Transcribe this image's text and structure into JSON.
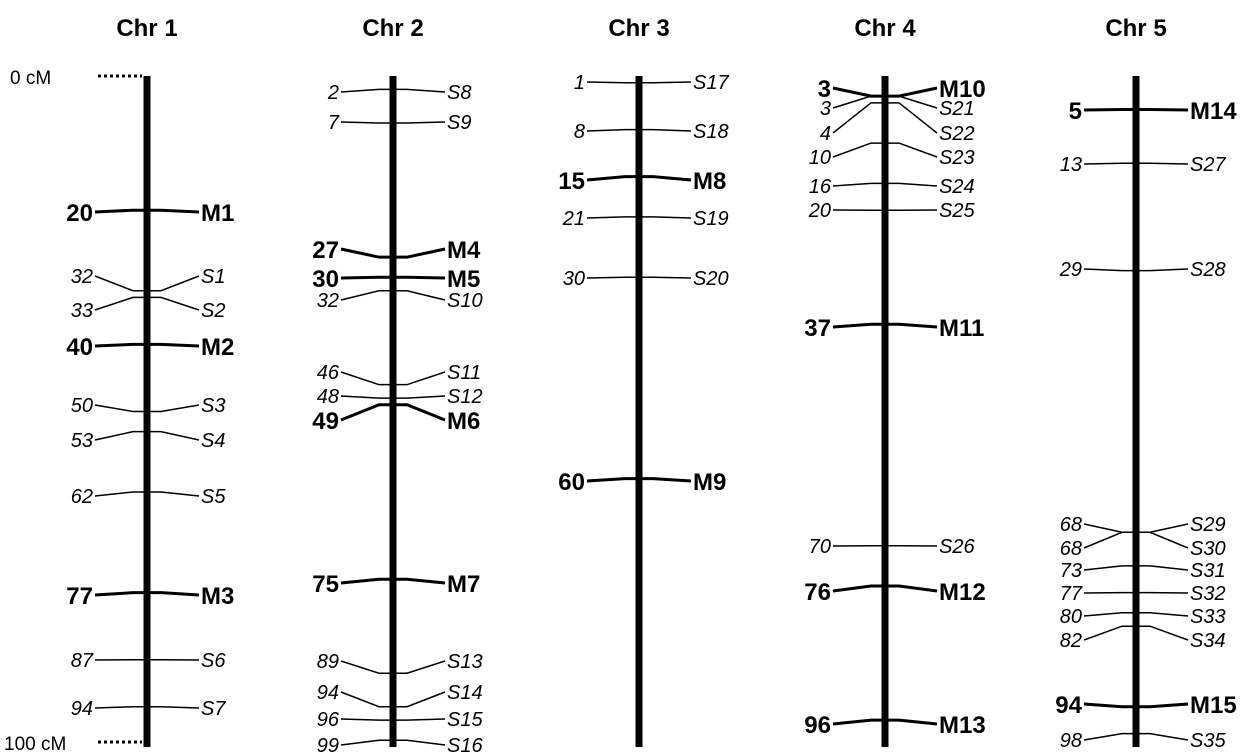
{
  "scale": {
    "top_label": "0 cM",
    "bottom_label": "100 cM"
  },
  "chromosomes": [
    {
      "title": "Chr 1",
      "markers": [
        {
          "pos": "20",
          "name": "M1",
          "major": true
        },
        {
          "pos": "32",
          "name": "S1",
          "major": false
        },
        {
          "pos": "33",
          "name": "S2",
          "major": false
        },
        {
          "pos": "40",
          "name": "M2",
          "major": true
        },
        {
          "pos": "50",
          "name": "S3",
          "major": false
        },
        {
          "pos": "53",
          "name": "S4",
          "major": false
        },
        {
          "pos": "62",
          "name": "S5",
          "major": false
        },
        {
          "pos": "77",
          "name": "M3",
          "major": true
        },
        {
          "pos": "87",
          "name": "S6",
          "major": false
        },
        {
          "pos": "94",
          "name": "S7",
          "major": false
        }
      ]
    },
    {
      "title": "Chr 2",
      "markers": [
        {
          "pos": "2",
          "name": "S8",
          "major": false
        },
        {
          "pos": "7",
          "name": "S9",
          "major": false
        },
        {
          "pos": "27",
          "name": "M4",
          "major": true
        },
        {
          "pos": "30",
          "name": "M5",
          "major": true
        },
        {
          "pos": "32",
          "name": "S10",
          "major": false
        },
        {
          "pos": "46",
          "name": "S11",
          "major": false
        },
        {
          "pos": "48",
          "name": "S12",
          "major": false
        },
        {
          "pos": "49",
          "name": "M6",
          "major": true
        },
        {
          "pos": "75",
          "name": "M7",
          "major": true
        },
        {
          "pos": "89",
          "name": "S13",
          "major": false
        },
        {
          "pos": "94",
          "name": "S14",
          "major": false
        },
        {
          "pos": "96",
          "name": "S15",
          "major": false
        },
        {
          "pos": "99",
          "name": "S16",
          "major": false
        }
      ]
    },
    {
      "title": "Chr 3",
      "markers": [
        {
          "pos": "1",
          "name": "S17",
          "major": false
        },
        {
          "pos": "8",
          "name": "S18",
          "major": false
        },
        {
          "pos": "15",
          "name": "M8",
          "major": true
        },
        {
          "pos": "21",
          "name": "S19",
          "major": false
        },
        {
          "pos": "30",
          "name": "S20",
          "major": false
        },
        {
          "pos": "60",
          "name": "M9",
          "major": true
        }
      ]
    },
    {
      "title": "Chr 4",
      "markers": [
        {
          "pos": "3",
          "name": "M10",
          "major": true
        },
        {
          "pos": "3",
          "name": "S21",
          "major": false
        },
        {
          "pos": "4",
          "name": "S22",
          "major": false
        },
        {
          "pos": "10",
          "name": "S23",
          "major": false
        },
        {
          "pos": "16",
          "name": "S24",
          "major": false
        },
        {
          "pos": "20",
          "name": "S25",
          "major": false
        },
        {
          "pos": "37",
          "name": "M11",
          "major": true
        },
        {
          "pos": "70",
          "name": "S26",
          "major": false
        },
        {
          "pos": "76",
          "name": "M12",
          "major": true
        },
        {
          "pos": "96",
          "name": "M13",
          "major": true
        }
      ]
    },
    {
      "title": "Chr 5",
      "markers": [
        {
          "pos": "5",
          "name": "M14",
          "major": true
        },
        {
          "pos": "13",
          "name": "S27",
          "major": false
        },
        {
          "pos": "29",
          "name": "S28",
          "major": false
        },
        {
          "pos": "68",
          "name": "S29",
          "major": false
        },
        {
          "pos": "68",
          "name": "S30",
          "major": false
        },
        {
          "pos": "73",
          "name": "S31",
          "major": false
        },
        {
          "pos": "77",
          "name": "S32",
          "major": false
        },
        {
          "pos": "80",
          "name": "S33",
          "major": false
        },
        {
          "pos": "82",
          "name": "S34",
          "major": false
        },
        {
          "pos": "94",
          "name": "M15",
          "major": true
        },
        {
          "pos": "98",
          "name": "S35",
          "major": false
        }
      ]
    }
  ]
}
